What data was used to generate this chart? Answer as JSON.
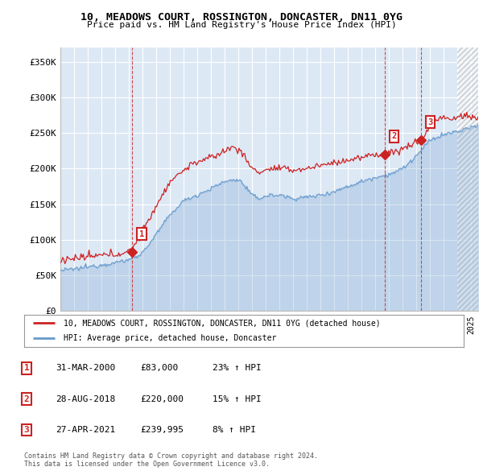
{
  "title": "10, MEADOWS COURT, ROSSINGTON, DONCASTER, DN11 0YG",
  "subtitle": "Price paid vs. HM Land Registry's House Price Index (HPI)",
  "ylim": [
    0,
    370000
  ],
  "yticks": [
    0,
    50000,
    100000,
    150000,
    200000,
    250000,
    300000,
    350000
  ],
  "ytick_labels": [
    "£0",
    "£50K",
    "£100K",
    "£150K",
    "£200K",
    "£250K",
    "£300K",
    "£350K"
  ],
  "xlim_start": 1995.0,
  "xlim_end": 2025.5,
  "background_color": "#ffffff",
  "plot_bg_color": "#dde8f5",
  "grid_color": "#ffffff",
  "hatch_start": 2024.0,
  "price_paid": [
    {
      "year": 2000.25,
      "price": 83000,
      "label": "1"
    },
    {
      "year": 2018.66,
      "price": 220000,
      "label": "2"
    },
    {
      "year": 2021.32,
      "price": 239995,
      "label": "3"
    }
  ],
  "legend_line1": "10, MEADOWS COURT, ROSSINGTON, DONCASTER, DN11 0YG (detached house)",
  "legend_line2": "HPI: Average price, detached house, Doncaster",
  "table_rows": [
    [
      "1",
      "31-MAR-2000",
      "£83,000",
      "23% ↑ HPI"
    ],
    [
      "2",
      "28-AUG-2018",
      "£220,000",
      "15% ↑ HPI"
    ],
    [
      "3",
      "27-APR-2021",
      "£239,995",
      "8% ↑ HPI"
    ]
  ],
  "footer1": "Contains HM Land Registry data © Crown copyright and database right 2024.",
  "footer2": "This data is licensed under the Open Government Licence v3.0.",
  "red_color": "#cc2222",
  "blue_color": "#6699cc",
  "label_box_color": "#cc2222"
}
